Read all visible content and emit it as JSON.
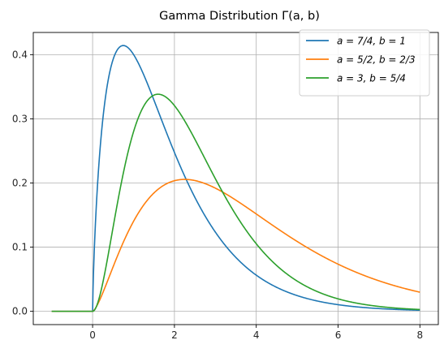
{
  "chart_data": {
    "type": "line",
    "title": "Gamma Distribution Γ(a, b)",
    "xlabel": "",
    "ylabel": "",
    "xlim": [
      -1.45,
      8.45
    ],
    "ylim": [
      -0.0207,
      0.4346
    ],
    "x_ticks": [
      0,
      2,
      4,
      6,
      8
    ],
    "x_tick_labels": [
      "0",
      "2",
      "4",
      "6",
      "8"
    ],
    "y_ticks": [
      0.0,
      0.1,
      0.2,
      0.3,
      0.4
    ],
    "y_tick_labels": [
      "0.0",
      "0.1",
      "0.2",
      "0.3",
      "0.4"
    ],
    "grid": true,
    "legend_position": "upper-right",
    "x_domain": [
      -1,
      8
    ],
    "series": [
      {
        "name": "a = 7/4, b = 1",
        "color": "#1f77b4",
        "shape": 1.75,
        "rate": 1,
        "x": [
          -1,
          0,
          0.05,
          0.1,
          0.25,
          0.5,
          0.75,
          1.0,
          1.5,
          2.0,
          2.5,
          3.0,
          4.0,
          5.0,
          6.0,
          7.0,
          8.0
        ],
        "values": [
          0,
          0,
          0.162,
          0.242,
          0.355,
          0.412,
          0.413,
          0.399,
          0.332,
          0.255,
          0.185,
          0.132,
          0.058,
          0.024,
          0.0095,
          0.0037,
          0.0014
        ]
      },
      {
        "name": "a = 5/2, b = 2/3",
        "color": "#ff7f0e",
        "shape": 2.5,
        "rate": 0.6667,
        "x": [
          -1,
          0,
          0.5,
          1.0,
          1.5,
          2.0,
          2.25,
          2.5,
          3.0,
          4.0,
          5.0,
          6.0,
          7.0,
          8.0
        ],
        "values": [
          0,
          0,
          0.044,
          0.111,
          0.168,
          0.2,
          0.206,
          0.204,
          0.192,
          0.153,
          0.112,
          0.076,
          0.048,
          0.029
        ]
      },
      {
        "name": "a = 3, b = 5/4",
        "color": "#2ca02c",
        "shape": 3,
        "rate": 1.25,
        "x": [
          -1,
          0,
          0.5,
          1.0,
          1.6,
          2.0,
          2.5,
          3.0,
          4.0,
          5.0,
          6.0,
          7.0,
          8.0
        ],
        "values": [
          0,
          0,
          0.105,
          0.279,
          0.338,
          0.321,
          0.26,
          0.192,
          0.105,
          0.05,
          0.021,
          0.0082,
          0.0035
        ]
      }
    ]
  }
}
